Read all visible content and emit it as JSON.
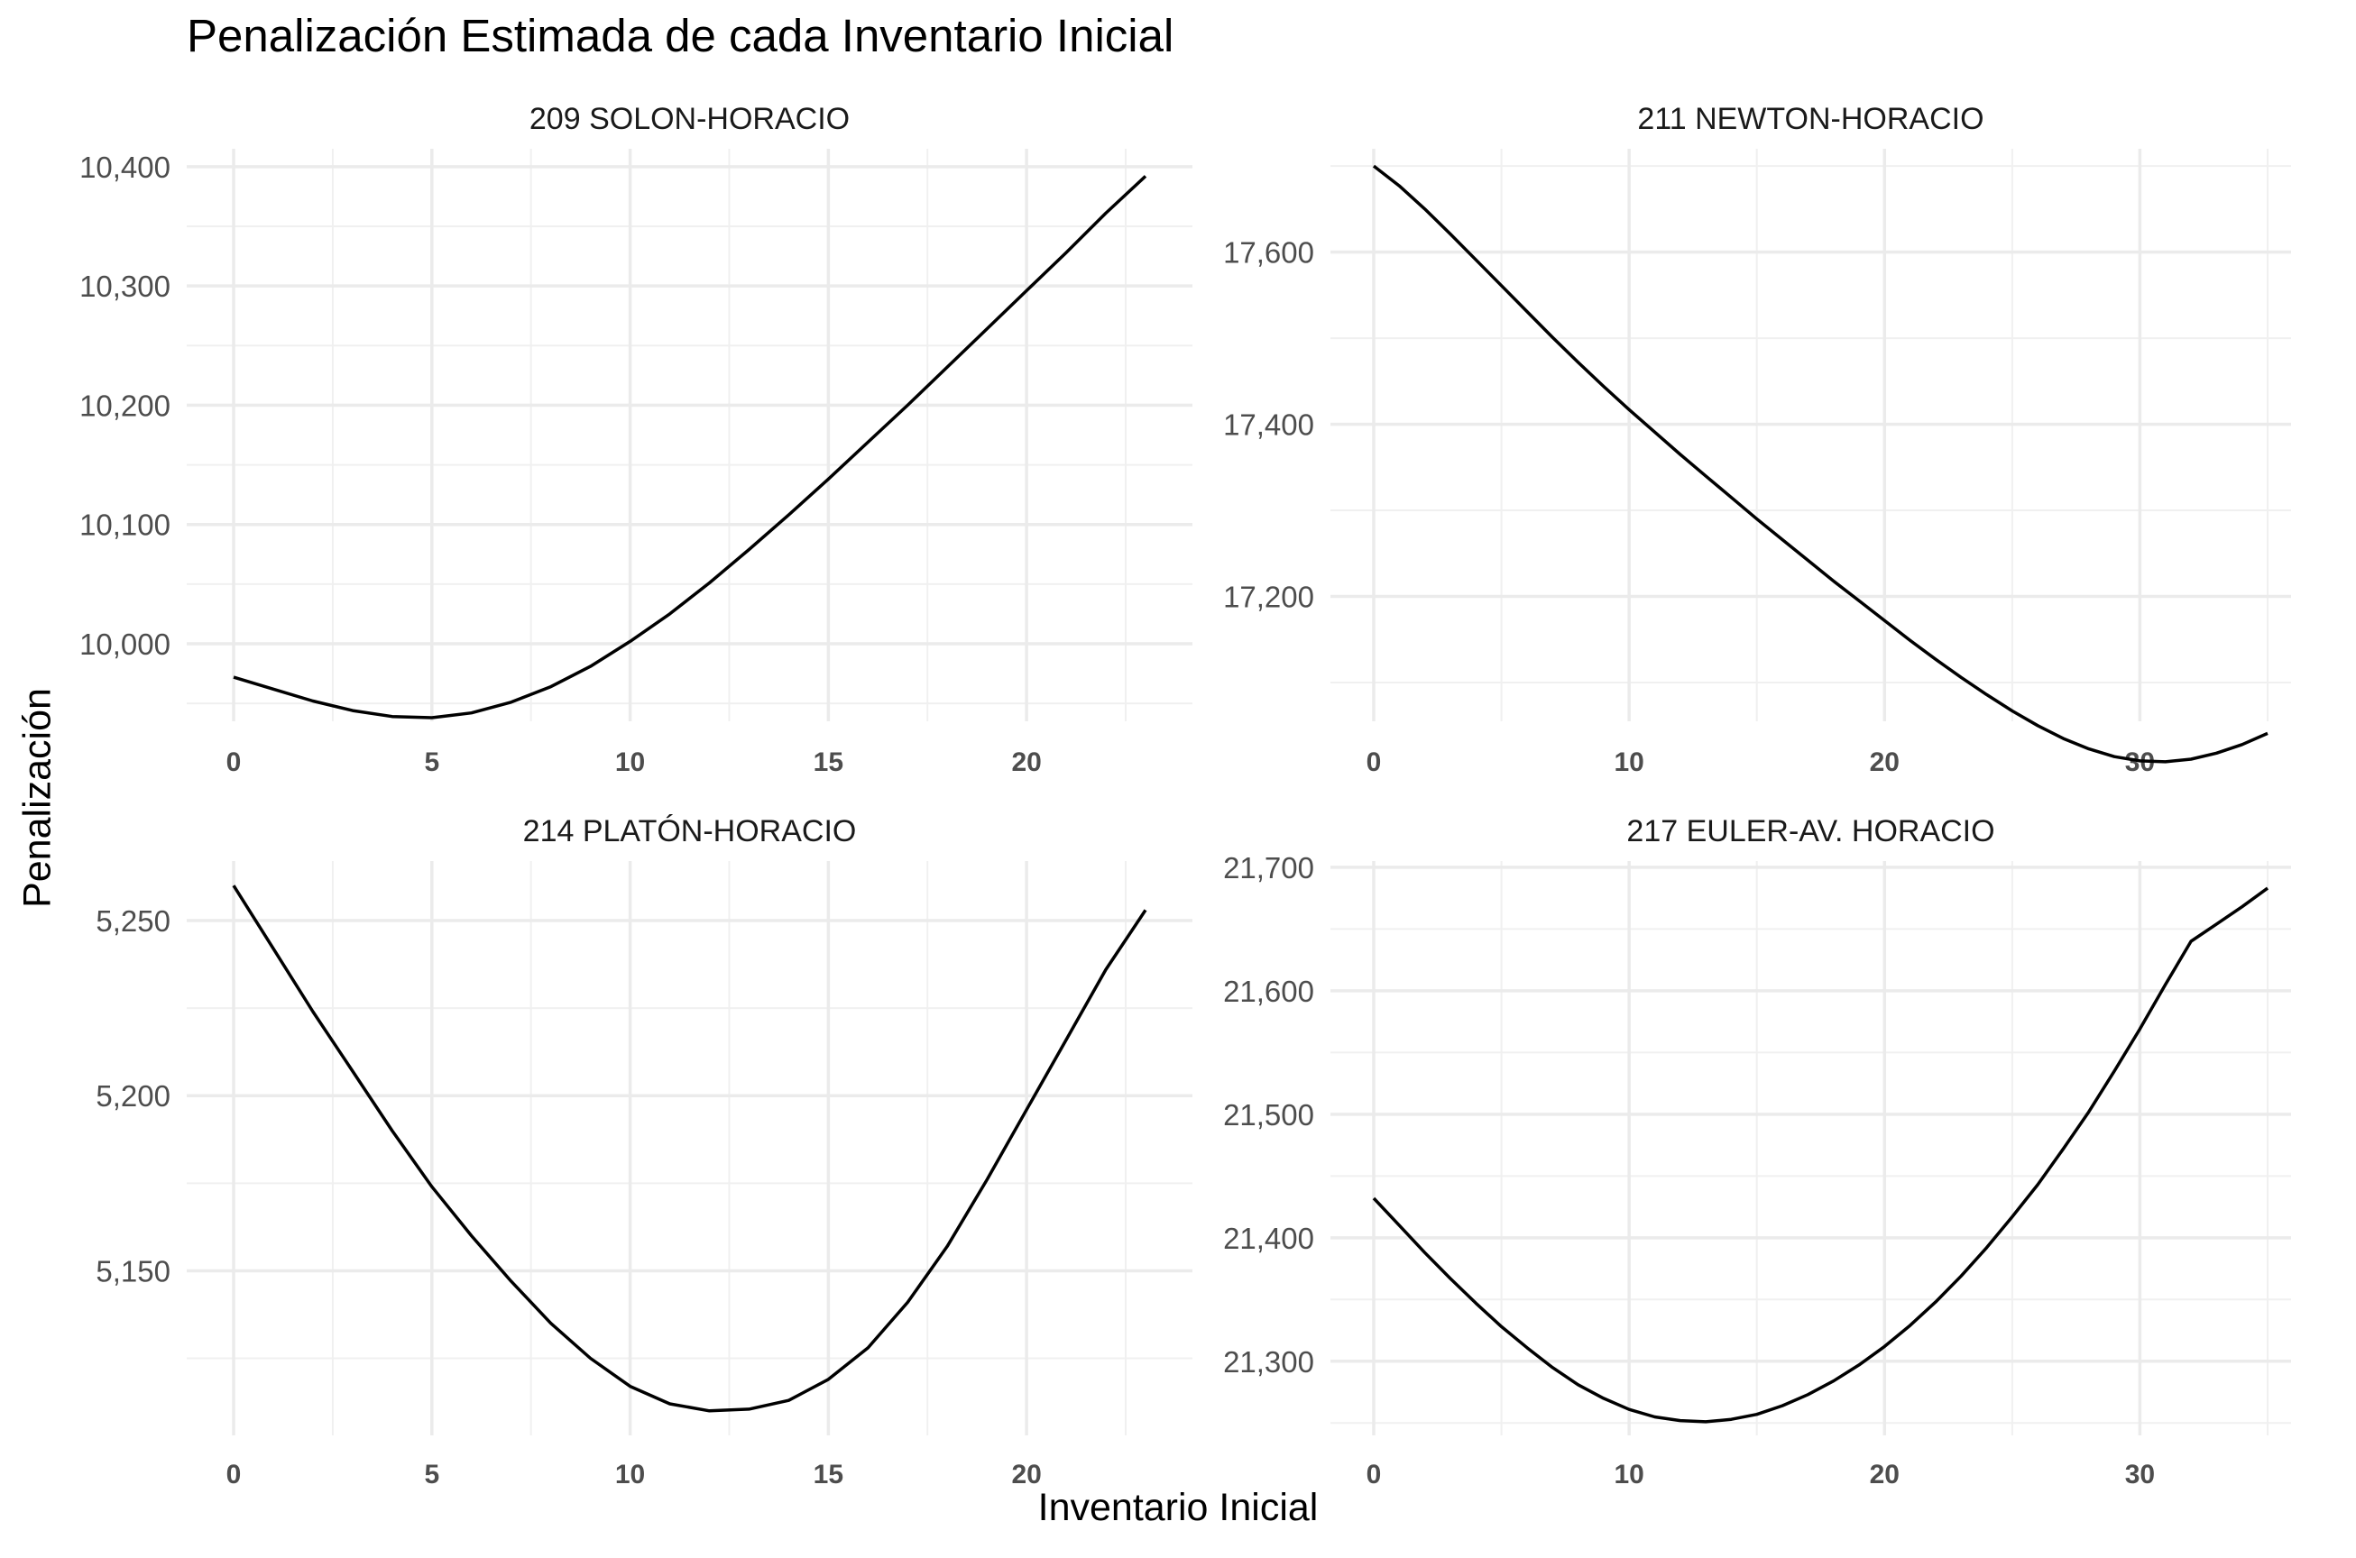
{
  "title": "Penalización Estimada de cada Inventario Inicial",
  "xlabel": "Inventario Inicial",
  "ylabel": "Penalización",
  "chart_data": [
    {
      "type": "line",
      "panel": "209 SOLON-HORACIO",
      "xlim": [
        0,
        23
      ],
      "ylim": [
        9935,
        10415
      ],
      "xticks": [
        0,
        5,
        10,
        15,
        20
      ],
      "yticks": [
        10000,
        10100,
        10200,
        10300,
        10400
      ],
      "ytick_labels": [
        "10,000",
        "10,100",
        "10,200",
        "10,300",
        "10,400"
      ],
      "x": [
        0,
        1,
        2,
        3,
        4,
        5,
        6,
        7,
        8,
        9,
        10,
        11,
        12,
        13,
        14,
        15,
        16,
        17,
        18,
        19,
        20,
        21,
        22,
        23
      ],
      "y": [
        9972,
        9962,
        9952,
        9944,
        9939,
        9938,
        9942,
        9951,
        9964,
        9981,
        10002,
        10025,
        10051,
        10079,
        10108,
        10138,
        10169,
        10200,
        10232,
        10264,
        10296,
        10328,
        10361,
        10392
      ]
    },
    {
      "type": "line",
      "panel": "211 NEWTON-HORACIO",
      "xlim": [
        0,
        35
      ],
      "ylim": [
        17055,
        17720
      ],
      "xticks": [
        0,
        10,
        20,
        30
      ],
      "yticks": [
        17200,
        17400,
        17600
      ],
      "ytick_labels": [
        "17,200",
        "17,400",
        "17,600"
      ],
      "x": [
        0,
        1,
        2,
        3,
        4,
        5,
        6,
        7,
        8,
        9,
        10,
        11,
        12,
        13,
        14,
        15,
        16,
        17,
        18,
        19,
        20,
        21,
        22,
        23,
        24,
        25,
        26,
        27,
        28,
        29,
        30,
        31,
        32,
        33,
        34,
        35
      ],
      "y": [
        17700,
        17677,
        17650,
        17621,
        17591,
        17561,
        17531,
        17501,
        17472,
        17444,
        17417,
        17391,
        17365,
        17340,
        17315,
        17290,
        17266,
        17242,
        17218,
        17195,
        17172,
        17149,
        17127,
        17106,
        17086,
        17067,
        17050,
        17035,
        17023,
        17014,
        17009,
        17008,
        17011,
        17018,
        17028,
        17041
      ]
    },
    {
      "type": "line",
      "panel": "214 PLATÓN-HORACIO",
      "xlim": [
        0,
        23
      ],
      "ylim": [
        5103,
        5267
      ],
      "xticks": [
        0,
        5,
        10,
        15,
        20
      ],
      "yticks": [
        5150,
        5200,
        5250
      ],
      "ytick_labels": [
        "5,150",
        "5,200",
        "5,250"
      ],
      "x": [
        0,
        1,
        2,
        3,
        4,
        5,
        6,
        7,
        8,
        9,
        10,
        11,
        12,
        13,
        14,
        15,
        16,
        17,
        18,
        19,
        20,
        21,
        22,
        23
      ],
      "y": [
        5260,
        5242,
        5224,
        5207,
        5190,
        5174,
        5160,
        5147,
        5135,
        5125,
        5117,
        5112,
        5110,
        5110.5,
        5113,
        5119,
        5128,
        5141,
        5157,
        5176,
        5196,
        5216,
        5236,
        5253
      ]
    },
    {
      "type": "line",
      "panel": "217 EULER-AV. HORACIO",
      "xlim": [
        0,
        35
      ],
      "ylim": [
        21240,
        21705
      ],
      "xticks": [
        0,
        10,
        20,
        30
      ],
      "yticks": [
        21300,
        21400,
        21500,
        21600,
        21700
      ],
      "ytick_labels": [
        "21,300",
        "21,400",
        "21,500",
        "21,600",
        "21,700"
      ],
      "x": [
        0,
        1,
        2,
        3,
        4,
        5,
        6,
        7,
        8,
        9,
        10,
        11,
        12,
        13,
        14,
        15,
        16,
        17,
        18,
        19,
        20,
        21,
        22,
        23,
        24,
        25,
        26,
        27,
        28,
        29,
        30,
        31,
        32,
        33,
        34,
        35
      ],
      "y": [
        21432,
        21410,
        21388,
        21367,
        21347,
        21328,
        21311,
        21295,
        21281,
        21270,
        21261,
        21255,
        21252,
        21251,
        21253,
        21257,
        21264,
        21273,
        21284,
        21297,
        21312,
        21329,
        21348,
        21369,
        21392,
        21417,
        21443,
        21472,
        21502,
        21535,
        21569,
        21605,
        21640,
        21654,
        21668,
        21683
      ]
    }
  ]
}
